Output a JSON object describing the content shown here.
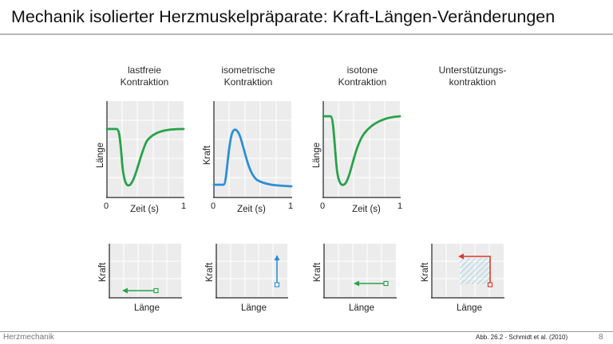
{
  "slide": {
    "title": "Mechanik isolierter Herzmuskelpräparate: Kraft-Längen-Veränderungen",
    "footer_left": "Herzmechanik",
    "footer_source": "Abb. 26.2 - Schmidt et al. (2010)",
    "page_number": "8"
  },
  "colors": {
    "green": "#27a24a",
    "blue": "#2b8fd6",
    "red": "#d6392b",
    "grid_bg": "#ececec",
    "hatch": "#8fd0e8"
  },
  "columns": [
    {
      "title_line1": "lastfreie",
      "title_line2": "Kontraktion",
      "time_plot": {
        "ylabel": "Länge",
        "xlabel": "Zeit (s)",
        "x_start": "0",
        "x_end": "1",
        "curve_color": "green"
      },
      "loop_plot": {
        "ylabel": "Kraft",
        "xlabel": "Länge",
        "arrow": "left",
        "color": "green"
      }
    },
    {
      "title_line1": "isometrische",
      "title_line2": "Kontraktion",
      "time_plot": {
        "ylabel": "Kraft",
        "xlabel": "Zeit (s)",
        "x_start": "0",
        "x_end": "1",
        "curve_color": "blue"
      },
      "loop_plot": {
        "ylabel": "Kraft",
        "xlabel": "Länge",
        "arrow": "up",
        "color": "blue"
      }
    },
    {
      "title_line1": "isotone",
      "title_line2": "Kontraktion",
      "time_plot": {
        "ylabel": "Länge",
        "xlabel": "Zeit (s)",
        "x_start": "0",
        "x_end": "1",
        "curve_color": "green"
      },
      "loop_plot": {
        "ylabel": "Kraft",
        "xlabel": "Länge",
        "arrow": "left",
        "color": "green"
      }
    },
    {
      "title_line1": "Unterstützungs-",
      "title_line2": "kontraktion",
      "loop_plot": {
        "ylabel": "Kraft",
        "xlabel": "Länge",
        "arrow": "up-left",
        "color": "red"
      }
    }
  ]
}
